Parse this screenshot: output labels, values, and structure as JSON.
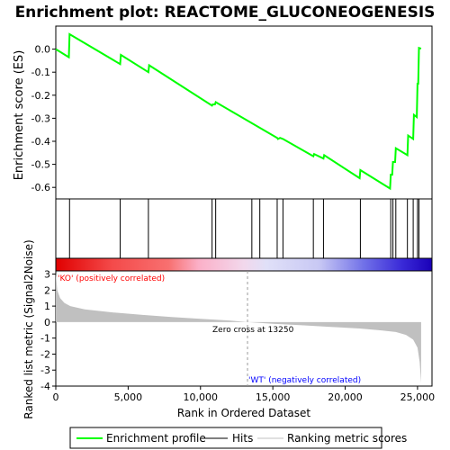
{
  "chart_data": {
    "type": "line",
    "title": "Enrichment plot: REACTOME_GLUCONEOGENESIS",
    "xlabel": "Rank in Ordered Dataset",
    "ylabel_top": "Enrichment score (ES)",
    "ylabel_bottom": "Ranked list metric (Signal2Noise)",
    "xlim": [
      0,
      26000
    ],
    "x_ticks": [
      0,
      5000,
      10000,
      15000,
      20000,
      25000
    ],
    "x_tick_labels": [
      "0",
      "5,000",
      "10,000",
      "15,000",
      "20,000",
      "25,000"
    ],
    "es_ylim": [
      -0.65,
      0.1
    ],
    "es_ticks": [
      0.0,
      -0.1,
      -0.2,
      -0.3,
      -0.4,
      -0.5,
      -0.6
    ],
    "es_tick_labels": [
      "0.0",
      "-0.1",
      "-0.2",
      "-0.3",
      "-0.4",
      "-0.5",
      "-0.6"
    ],
    "metric_ylim": [
      -4,
      3.2
    ],
    "metric_ticks": [
      3,
      2,
      1,
      0,
      -1,
      -2,
      -3,
      -4
    ],
    "metric_tick_labels": [
      "3",
      "2",
      "1",
      "0",
      "-1",
      "-2",
      "-3",
      "-4"
    ],
    "grid": false,
    "colors": {
      "profile": "#00ff00",
      "hits": "#000000",
      "metric": "#c0c0c0",
      "pos_label": "#ff0000",
      "neg_label": "#0000ff"
    },
    "series": [
      {
        "name": "Enrichment profile",
        "points": [
          [
            0,
            0.0
          ],
          [
            900,
            -0.035
          ],
          [
            950,
            0.065
          ],
          [
            4450,
            -0.065
          ],
          [
            4500,
            -0.025
          ],
          [
            6400,
            -0.1
          ],
          [
            6450,
            -0.07
          ],
          [
            10800,
            -0.245
          ],
          [
            10850,
            -0.24
          ],
          [
            11000,
            -0.24
          ],
          [
            11050,
            -0.23
          ],
          [
            15300,
            -0.385
          ],
          [
            15350,
            -0.39
          ],
          [
            15500,
            -0.385
          ],
          [
            15700,
            -0.39
          ],
          [
            17800,
            -0.465
          ],
          [
            17850,
            -0.455
          ],
          [
            18500,
            -0.475
          ],
          [
            18550,
            -0.46
          ],
          [
            21000,
            -0.56
          ],
          [
            21050,
            -0.525
          ],
          [
            23100,
            -0.605
          ],
          [
            23150,
            -0.545
          ],
          [
            23250,
            -0.545
          ],
          [
            23300,
            -0.49
          ],
          [
            23450,
            -0.49
          ],
          [
            23500,
            -0.43
          ],
          [
            24300,
            -0.46
          ],
          [
            24350,
            -0.375
          ],
          [
            24700,
            -0.39
          ],
          [
            24750,
            -0.285
          ],
          [
            24950,
            -0.295
          ],
          [
            25000,
            -0.15
          ],
          [
            25050,
            -0.15
          ],
          [
            25100,
            0.005
          ],
          [
            25250,
            0.002
          ]
        ]
      }
    ],
    "hits": [
      950,
      4450,
      6400,
      10800,
      11050,
      13550,
      14100,
      15300,
      15700,
      17800,
      18500,
      21050,
      23150,
      23300,
      23500,
      24300,
      24700,
      25000,
      25100
    ],
    "metric_curve": [
      [
        0,
        3.1
      ],
      [
        100,
        2.0
      ],
      [
        300,
        1.5
      ],
      [
        600,
        1.2
      ],
      [
        1000,
        1.0
      ],
      [
        2000,
        0.8
      ],
      [
        4000,
        0.6
      ],
      [
        6000,
        0.45
      ],
      [
        8000,
        0.32
      ],
      [
        10000,
        0.2
      ],
      [
        12000,
        0.1
      ],
      [
        13250,
        0.0
      ],
      [
        15000,
        -0.1
      ],
      [
        17000,
        -0.2
      ],
      [
        19000,
        -0.3
      ],
      [
        21000,
        -0.4
      ],
      [
        22500,
        -0.52
      ],
      [
        23500,
        -0.62
      ],
      [
        24200,
        -0.8
      ],
      [
        24700,
        -1.1
      ],
      [
        25000,
        -1.6
      ],
      [
        25150,
        -2.5
      ],
      [
        25250,
        -3.8
      ]
    ],
    "zero_cross": 13250,
    "annotations": {
      "positive": "'KO' (positively correlated)",
      "negative": "'WT' (negatively correlated)",
      "zero_cross": "Zero cross at 13250"
    },
    "legend": {
      "placement": "bottom",
      "entries": [
        "Enrichment profile",
        "Hits",
        "Ranking metric scores"
      ]
    }
  }
}
